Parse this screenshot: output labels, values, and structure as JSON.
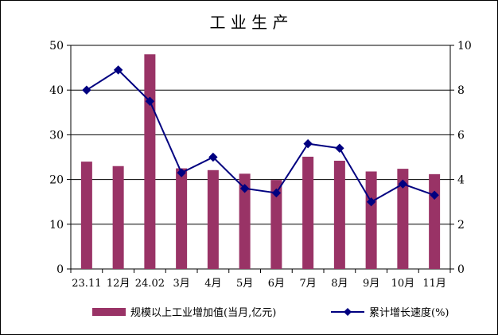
{
  "chart_data": {
    "type": "bar+line",
    "title": "工 业 生 产",
    "categories": [
      "23.11",
      "12月",
      "24.02",
      "3月",
      "4月",
      "5月",
      "6月",
      "7月",
      "8月",
      "9月",
      "10月",
      "11月"
    ],
    "series": [
      {
        "name": "规模以上工业增加值(当月,亿元)",
        "type": "bar",
        "axis": "left",
        "color": "#993366",
        "values": [
          24.0,
          23.0,
          48.0,
          22.5,
          22.1,
          21.3,
          19.9,
          25.1,
          24.2,
          21.8,
          22.4,
          21.2
        ]
      },
      {
        "name": "累计增长速度(%)",
        "type": "line",
        "axis": "right",
        "color": "#000080",
        "marker": "diamond",
        "values": [
          8.0,
          8.9,
          7.5,
          4.3,
          5.0,
          3.6,
          3.4,
          5.6,
          5.4,
          3.0,
          3.8,
          3.3
        ]
      }
    ],
    "y_left": {
      "min": 0,
      "max": 50,
      "ticks": [
        0,
        10,
        20,
        30,
        40,
        50
      ]
    },
    "y_right": {
      "min": 0,
      "max": 10,
      "ticks": [
        0,
        2,
        4,
        6,
        8,
        10
      ]
    },
    "grid": true,
    "legend_position": "bottom"
  }
}
